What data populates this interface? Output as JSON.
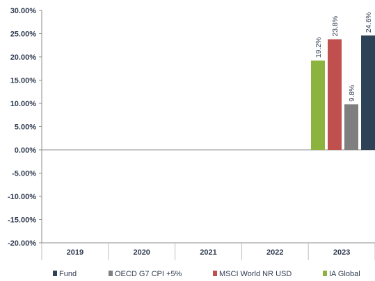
{
  "chart_data": {
    "type": "bar",
    "title": "",
    "xlabel": "",
    "ylabel": "",
    "categories": [
      "2019",
      "2020",
      "2021",
      "2022",
      "2023"
    ],
    "ylim": [
      -20,
      30
    ],
    "yticks": [
      30,
      25,
      20,
      15,
      10,
      5,
      0,
      -5,
      -10,
      -15,
      -20
    ],
    "ytick_labels": [
      "30.00%",
      "25.00%",
      "20.00%",
      "15.00%",
      "10.00%",
      "5.00%",
      "0.00%",
      "-5.00%",
      "-10.00%",
      "-15.00%",
      "-20.00%"
    ],
    "bar_order": [
      "IA Global",
      "MSCI World NR USD",
      "OECD G7 CPI +5%",
      "Fund"
    ],
    "series": [
      {
        "name": "Fund",
        "color": "#2e4257",
        "values": [
          null,
          null,
          null,
          null,
          24.6
        ],
        "labels": [
          null,
          null,
          null,
          null,
          "24.6%"
        ]
      },
      {
        "name": "OECD G7 CPI +5%",
        "color": "#7f7f7f",
        "values": [
          null,
          null,
          null,
          null,
          9.8
        ],
        "labels": [
          null,
          null,
          null,
          null,
          "9.8%"
        ]
      },
      {
        "name": "MSCI World NR USD",
        "color": "#c0504d",
        "values": [
          null,
          null,
          null,
          null,
          23.8
        ],
        "labels": [
          null,
          null,
          null,
          null,
          "23.8%"
        ]
      },
      {
        "name": "IA Global",
        "color": "#8db33f",
        "values": [
          null,
          null,
          null,
          null,
          19.2
        ],
        "labels": [
          null,
          null,
          null,
          null,
          "19.2%"
        ]
      }
    ],
    "legend": {
      "placement": "bottom",
      "items": [
        "Fund",
        "OECD G7 CPI +5%",
        "MSCI World NR USD",
        "IA Global"
      ]
    },
    "grid": false
  }
}
